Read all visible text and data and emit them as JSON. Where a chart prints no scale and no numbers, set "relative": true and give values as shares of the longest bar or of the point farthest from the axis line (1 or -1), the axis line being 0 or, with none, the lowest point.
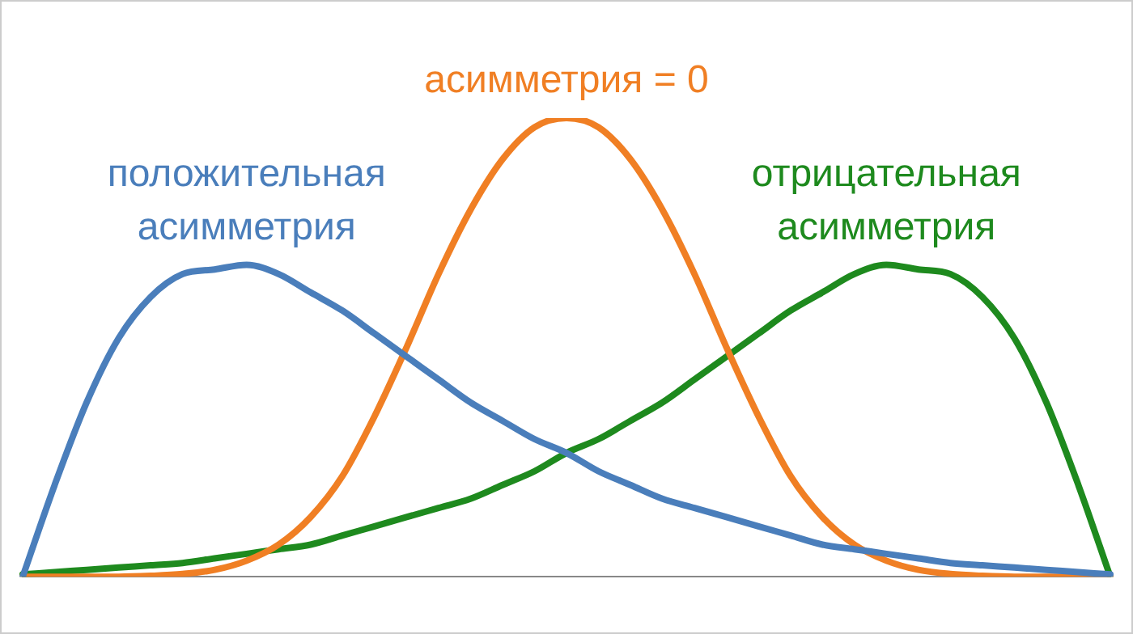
{
  "chart_data": {
    "type": "line",
    "relative": true,
    "grid": false,
    "legend": false,
    "marker": "none",
    "line_style": "solid",
    "categories": [
      null,
      null,
      null,
      null,
      null,
      null,
      null,
      null,
      null,
      null,
      null,
      null,
      null,
      null,
      null,
      null,
      null,
      null,
      null,
      null,
      null,
      null,
      null,
      null,
      null,
      null,
      null,
      null,
      null,
      null,
      null,
      null,
      null,
      null,
      null
    ],
    "series": [
      {
        "name": "положительная асимметрия",
        "color": "#4a7ebb",
        "values": [
          0,
          0.2,
          0.38,
          0.52,
          0.61,
          0.66,
          0.67,
          0.68,
          0.66,
          0.62,
          0.58,
          0.53,
          0.48,
          0.43,
          0.38,
          0.34,
          0.3,
          0.27,
          0.23,
          0.2,
          0.17,
          0.15,
          0.13,
          0.11,
          0.09,
          0.07,
          0.06,
          0.05,
          0.04,
          0.03,
          0.025,
          0.02,
          0.015,
          0.01,
          0.005
        ]
      },
      {
        "name": "асимметрия = 0",
        "color": "#f07f24",
        "values": [
          0,
          0,
          0,
          0,
          0.002,
          0.006,
          0.015,
          0.035,
          0.07,
          0.13,
          0.22,
          0.35,
          0.5,
          0.66,
          0.8,
          0.91,
          0.98,
          1,
          0.98,
          0.91,
          0.8,
          0.66,
          0.5,
          0.35,
          0.22,
          0.13,
          0.07,
          0.035,
          0.015,
          0.006,
          0.002,
          0,
          0,
          0,
          0
        ]
      },
      {
        "name": "отрицательная асимметрия",
        "color": "#1e8a1e",
        "values": [
          0.005,
          0.01,
          0.015,
          0.02,
          0.025,
          0.03,
          0.04,
          0.05,
          0.06,
          0.07,
          0.09,
          0.11,
          0.13,
          0.15,
          0.17,
          0.2,
          0.23,
          0.27,
          0.3,
          0.34,
          0.38,
          0.43,
          0.48,
          0.53,
          0.58,
          0.62,
          0.66,
          0.68,
          0.67,
          0.66,
          0.61,
          0.52,
          0.38,
          0.2,
          0
        ]
      }
    ]
  }
}
